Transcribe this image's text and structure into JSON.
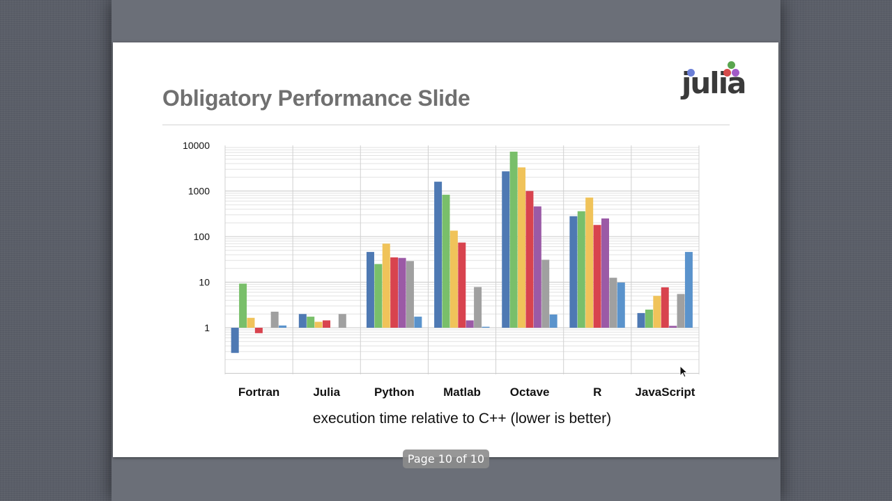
{
  "slide": {
    "title": "Obligatory Performance Slide",
    "logo_text": "julia",
    "logo_dot_colors": [
      "#6b7fd7",
      "#5aa54f",
      "#d54b4b",
      "#a25bc7"
    ]
  },
  "viewer": {
    "page_indicator": "Page 10 of 10"
  },
  "chart_data": {
    "type": "bar",
    "yscale": "log",
    "ylim": [
      0.1,
      10000
    ],
    "baseline": 1,
    "grid": true,
    "y_ticks": [
      1,
      10,
      100,
      1000,
      10000
    ],
    "y_tick_labels": [
      "1",
      "10",
      "100",
      "1000",
      "10000"
    ],
    "categories": [
      "Fortran",
      "Julia",
      "Python",
      "Matlab",
      "Octave",
      "R",
      "JavaScript"
    ],
    "xlabel": "execution time relative to C++ (lower is better)",
    "ylabel": "",
    "title": "",
    "series_colors": [
      "#4e79b3",
      "#79bf6a",
      "#f0c35a",
      "#d8434e",
      "#9b5aa6",
      "#a0a0a0",
      "#5a93cc"
    ],
    "series": [
      {
        "values": [
          0.28,
          2.0,
          46,
          1600,
          2700,
          280,
          2.1
        ]
      },
      {
        "values": [
          9.3,
          1.75,
          25,
          830,
          7300,
          360,
          2.5
        ]
      },
      {
        "values": [
          1.65,
          1.35,
          70,
          135,
          3300,
          720,
          5.0
        ]
      },
      {
        "values": [
          0.76,
          1.45,
          35,
          74,
          1000,
          180,
          7.7
        ]
      },
      {
        "values": [
          null,
          null,
          34,
          1.45,
          460,
          250,
          1.1
        ]
      },
      {
        "values": [
          2.25,
          2.0,
          29,
          7.8,
          31,
          12.5,
          5.5
        ]
      },
      {
        "values": [
          1.12,
          null,
          1.75,
          1.05,
          1.95,
          9.8,
          46
        ]
      }
    ]
  }
}
